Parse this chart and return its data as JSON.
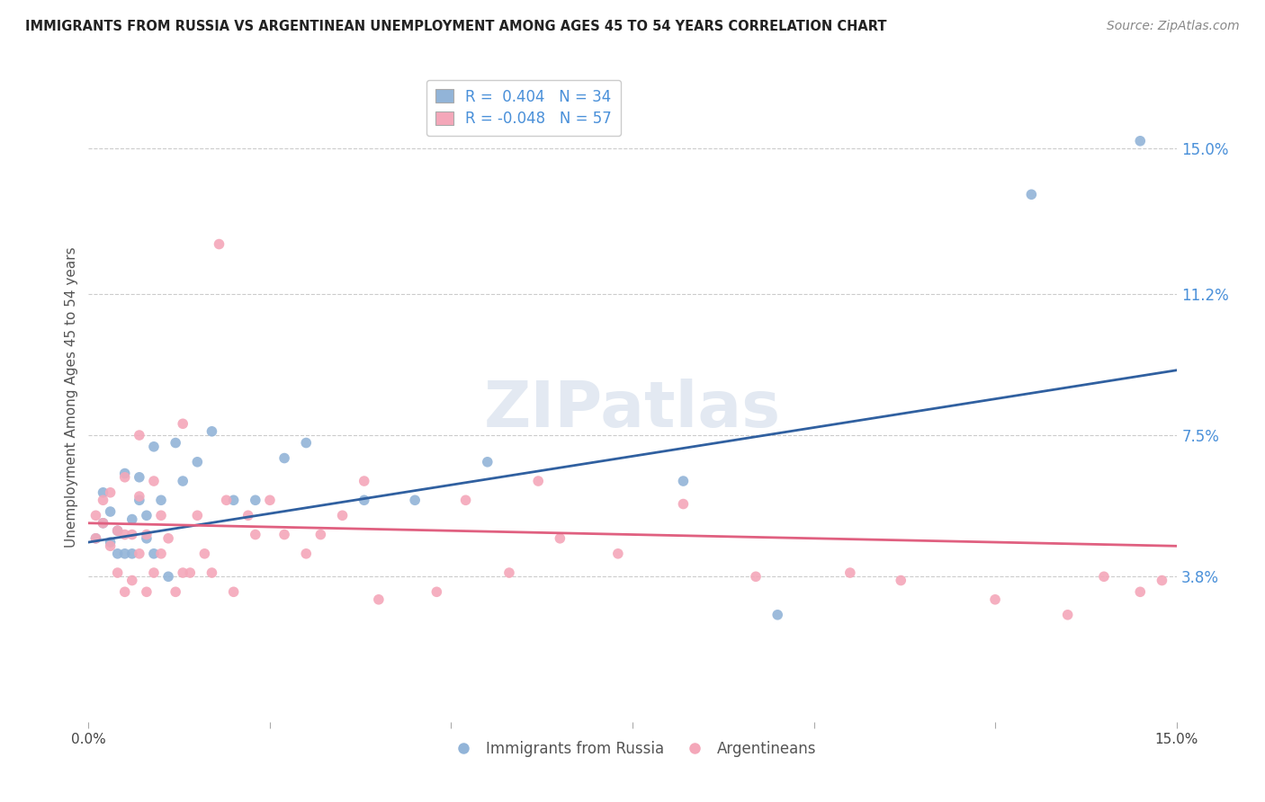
{
  "title": "IMMIGRANTS FROM RUSSIA VS ARGENTINEAN UNEMPLOYMENT AMONG AGES 45 TO 54 YEARS CORRELATION CHART",
  "source": "Source: ZipAtlas.com",
  "ylabel": "Unemployment Among Ages 45 to 54 years",
  "xlim": [
    0.0,
    0.15
  ],
  "ylim": [
    0.0,
    0.17
  ],
  "yticks": [
    0.038,
    0.075,
    0.112,
    0.15
  ],
  "ytick_labels": [
    "3.8%",
    "7.5%",
    "11.2%",
    "15.0%"
  ],
  "xticks": [
    0.0,
    0.025,
    0.05,
    0.075,
    0.1,
    0.125,
    0.15
  ],
  "xtick_labels": [
    "0.0%",
    "",
    "",
    "",
    "",
    "",
    "15.0%"
  ],
  "hlines": [
    0.038,
    0.075,
    0.112,
    0.15
  ],
  "blue_R": 0.404,
  "blue_N": 34,
  "pink_R": -0.048,
  "pink_N": 57,
  "blue_color": "#92b4d8",
  "pink_color": "#f4a7b9",
  "blue_line_color": "#3060a0",
  "pink_line_color": "#e06080",
  "watermark": "ZIPatlas",
  "blue_scatter_x": [
    0.001,
    0.002,
    0.002,
    0.003,
    0.003,
    0.004,
    0.004,
    0.005,
    0.005,
    0.006,
    0.006,
    0.007,
    0.007,
    0.008,
    0.008,
    0.009,
    0.009,
    0.01,
    0.011,
    0.012,
    0.013,
    0.015,
    0.017,
    0.02,
    0.023,
    0.027,
    0.03,
    0.038,
    0.045,
    0.055,
    0.082,
    0.095,
    0.13,
    0.145
  ],
  "blue_scatter_y": [
    0.048,
    0.052,
    0.06,
    0.047,
    0.055,
    0.044,
    0.05,
    0.044,
    0.065,
    0.044,
    0.053,
    0.058,
    0.064,
    0.048,
    0.054,
    0.072,
    0.044,
    0.058,
    0.038,
    0.073,
    0.063,
    0.068,
    0.076,
    0.058,
    0.058,
    0.069,
    0.073,
    0.058,
    0.058,
    0.068,
    0.063,
    0.028,
    0.138,
    0.152
  ],
  "pink_scatter_x": [
    0.001,
    0.001,
    0.002,
    0.002,
    0.003,
    0.003,
    0.004,
    0.004,
    0.005,
    0.005,
    0.005,
    0.006,
    0.006,
    0.007,
    0.007,
    0.007,
    0.008,
    0.008,
    0.009,
    0.009,
    0.01,
    0.01,
    0.011,
    0.012,
    0.013,
    0.013,
    0.014,
    0.015,
    0.016,
    0.017,
    0.018,
    0.019,
    0.02,
    0.022,
    0.023,
    0.025,
    0.027,
    0.03,
    0.032,
    0.035,
    0.038,
    0.04,
    0.048,
    0.052,
    0.058,
    0.062,
    0.065,
    0.073,
    0.082,
    0.092,
    0.105,
    0.112,
    0.125,
    0.135,
    0.14,
    0.145,
    0.148
  ],
  "pink_scatter_y": [
    0.048,
    0.054,
    0.052,
    0.058,
    0.046,
    0.06,
    0.039,
    0.05,
    0.034,
    0.049,
    0.064,
    0.037,
    0.049,
    0.044,
    0.059,
    0.075,
    0.034,
    0.049,
    0.039,
    0.063,
    0.044,
    0.054,
    0.048,
    0.034,
    0.039,
    0.078,
    0.039,
    0.054,
    0.044,
    0.039,
    0.125,
    0.058,
    0.034,
    0.054,
    0.049,
    0.058,
    0.049,
    0.044,
    0.049,
    0.054,
    0.063,
    0.032,
    0.034,
    0.058,
    0.039,
    0.063,
    0.048,
    0.044,
    0.057,
    0.038,
    0.039,
    0.037,
    0.032,
    0.028,
    0.038,
    0.034,
    0.037
  ]
}
